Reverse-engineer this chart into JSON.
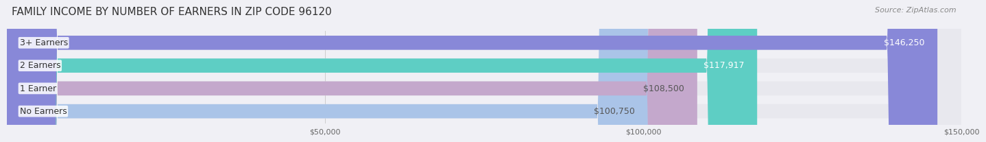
{
  "title": "FAMILY INCOME BY NUMBER OF EARNERS IN ZIP CODE 96120",
  "source": "Source: ZipAtlas.com",
  "categories": [
    "No Earners",
    "1 Earner",
    "2 Earners",
    "3+ Earners"
  ],
  "values": [
    100750,
    108500,
    117917,
    146250
  ],
  "bar_colors": [
    "#aac4e8",
    "#c4a8cc",
    "#5ecec4",
    "#8888d8"
  ],
  "bar_labels": [
    "$100,750",
    "$108,500",
    "$117,917",
    "$146,250"
  ],
  "label_colors": [
    "#555555",
    "#555555",
    "#ffffff",
    "#ffffff"
  ],
  "xlim": [
    0,
    150000
  ],
  "xticks": [
    50000,
    100000,
    150000
  ],
  "xtick_labels": [
    "$50,000",
    "$100,000",
    "$150,000"
  ],
  "background_color": "#f0f0f5",
  "bar_bg_color": "#e8e8ee",
  "title_fontsize": 11,
  "source_fontsize": 8,
  "label_fontsize": 9,
  "category_fontsize": 9
}
